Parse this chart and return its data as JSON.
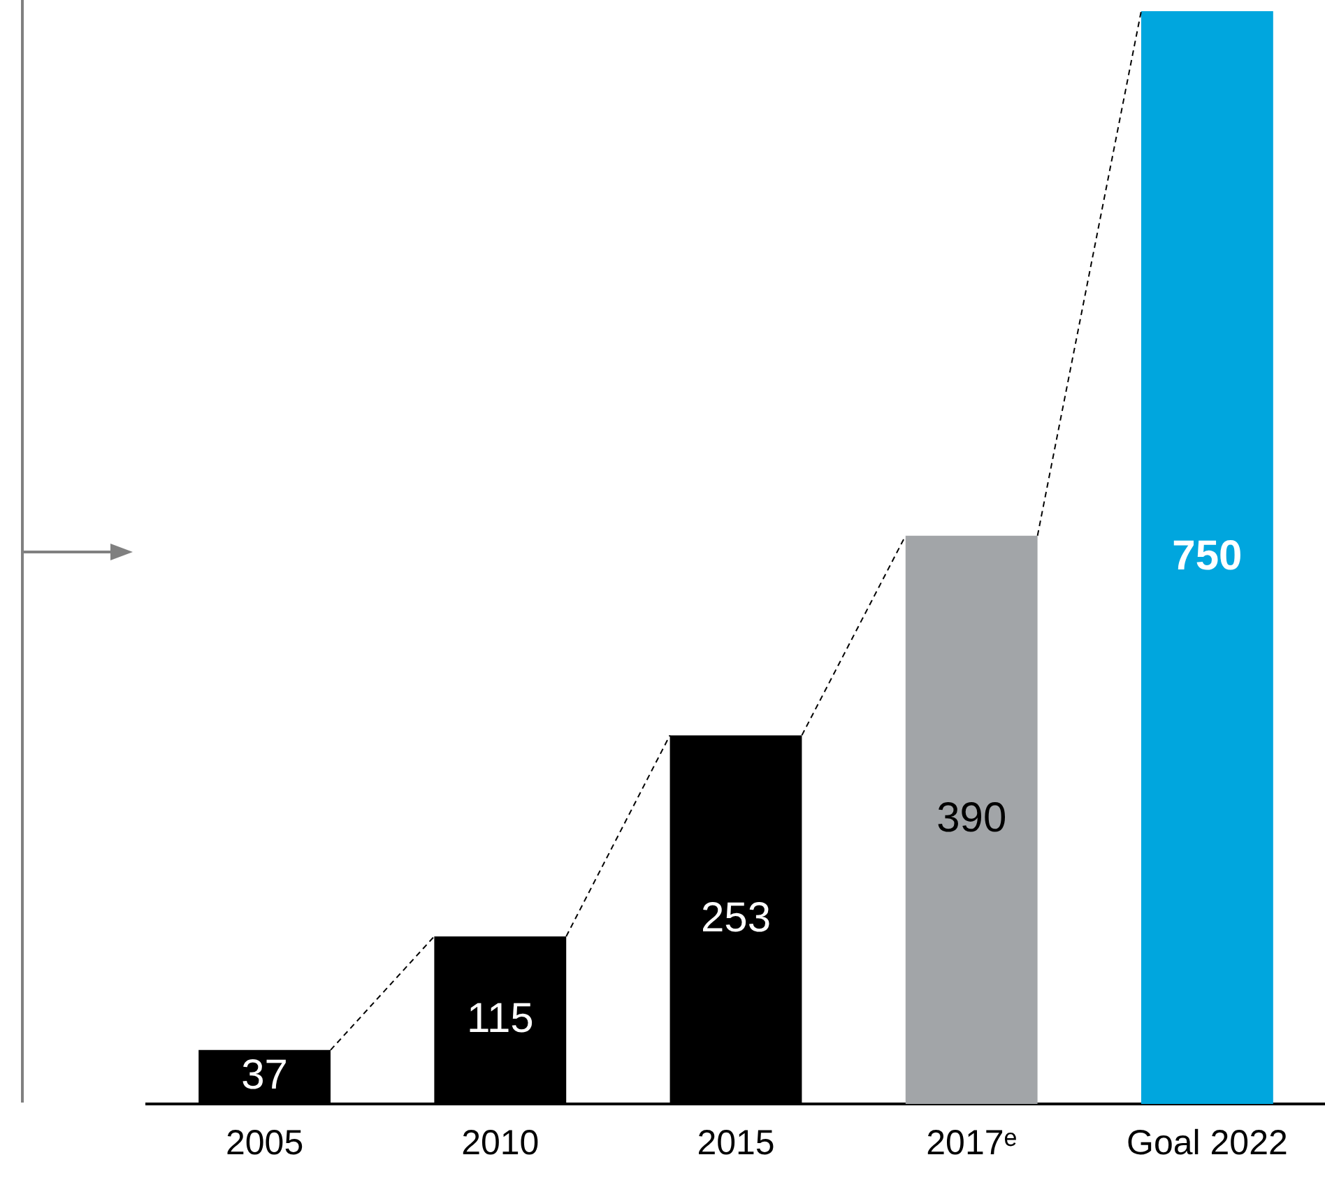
{
  "chart_data": {
    "type": "bar",
    "categories": [
      "2005",
      "2010",
      "2015",
      "2017ᵉ",
      "Goal 2022"
    ],
    "values": [
      37,
      115,
      253,
      390,
      750
    ],
    "colors": [
      "#000000",
      "#000000",
      "#000000",
      "#a2a5a8",
      "#00a6de"
    ],
    "data_labels": true,
    "tick_labels": "x",
    "grid": false,
    "legend": false
  }
}
